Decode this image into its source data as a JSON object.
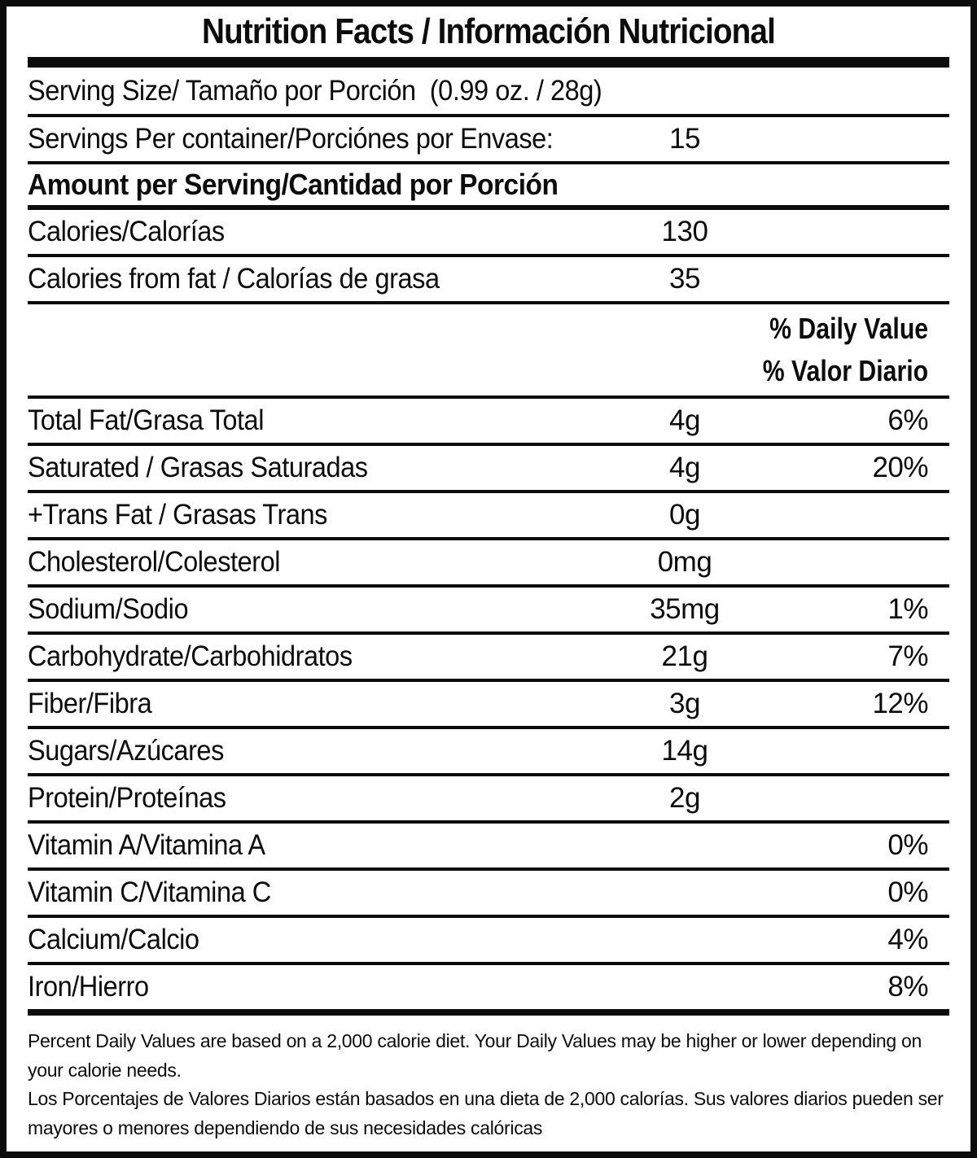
{
  "title": "Nutrition Facts / Información Nutricional",
  "serving_size_line": "Serving Size/ Tamaño por Porción  (0.99 oz. / 28g)",
  "servings_per_container": {
    "label": "Servings Per container/Porciónes por Envase:",
    "value": "15"
  },
  "amount_per_serving_header": "Amount per Serving/Cantidad por Porción",
  "daily_value_header": {
    "en": "% Daily Value",
    "es": "% Valor Diario"
  },
  "calorie_rows": [
    {
      "label": "Calories/Calorías",
      "amount": "130",
      "dv": ""
    },
    {
      "label": "Calories from fat / Calorías de grasa",
      "amount": "35",
      "dv": ""
    }
  ],
  "nutrient_rows": [
    {
      "label": "Total Fat/Grasa Total",
      "amount": "4g",
      "dv": "6%"
    },
    {
      "label": "Saturated / Grasas Saturadas",
      "amount": "4g",
      "dv": "20%"
    },
    {
      "label": "+Trans Fat / Grasas Trans",
      "amount": "0g",
      "dv": ""
    },
    {
      "label": "Cholesterol/Colesterol",
      "amount": "0mg",
      "dv": ""
    },
    {
      "label": "Sodium/Sodio",
      "amount": "35mg",
      "dv": "1%"
    },
    {
      "label": "Carbohydrate/Carbohidratos",
      "amount": "21g",
      "dv": "7%"
    },
    {
      "label": "Fiber/Fibra",
      "amount": "3g",
      "dv": "12%"
    },
    {
      "label": "Sugars/Azúcares",
      "amount": "14g",
      "dv": ""
    },
    {
      "label": "Protein/Proteínas",
      "amount": "2g",
      "dv": ""
    },
    {
      "label": "Vitamin A/Vitamina A",
      "amount": "",
      "dv": "0%"
    },
    {
      "label": "Vitamin C/Vitamina C",
      "amount": "",
      "dv": "0%"
    },
    {
      "label": "Calcium/Calcio",
      "amount": "",
      "dv": "4%"
    },
    {
      "label": "Iron/Hierro",
      "amount": "",
      "dv": "8%"
    }
  ],
  "footnotes": {
    "en": "Percent Daily Values are based on a 2,000 calorie diet. Your Daily Values may be higher or lower depending on your calorie needs.",
    "es": "Los Porcentajes de Valores Diarios están basados en una dieta de 2,000 calorías. Sus valores diarios pueden ser mayores o menores dependiendo de sus necesidades calóricas"
  },
  "colors": {
    "ink": "#0c0c0c",
    "background": "#ffffff"
  }
}
